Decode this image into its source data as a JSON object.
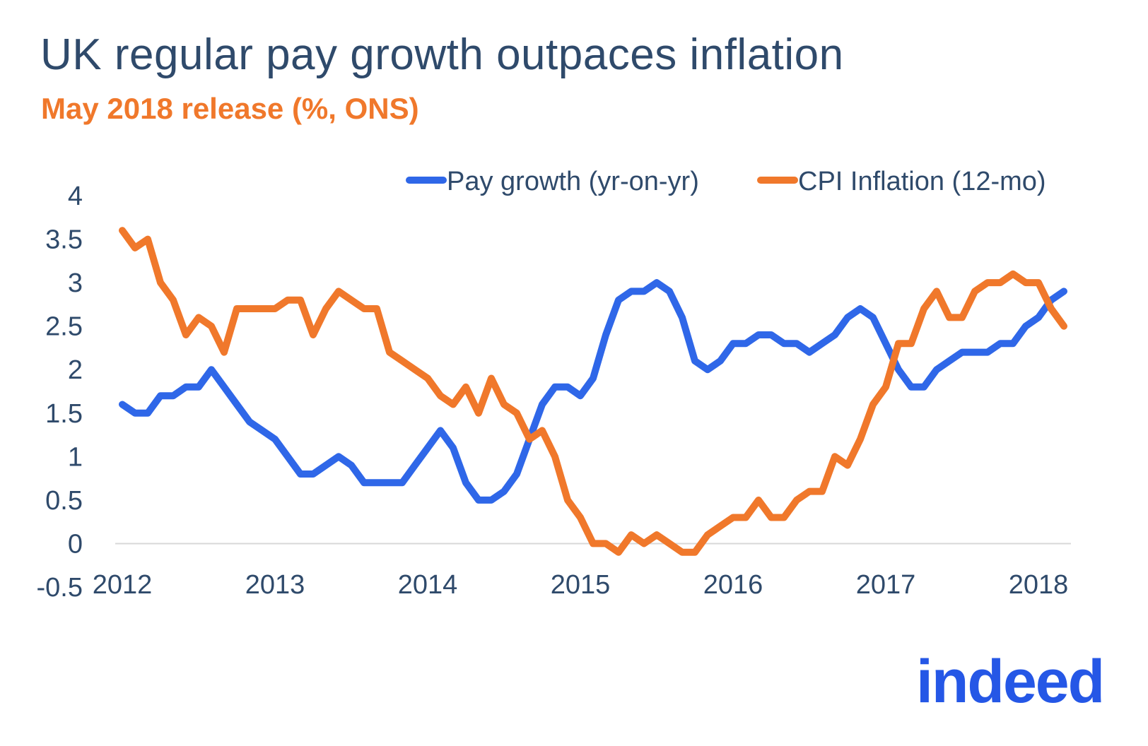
{
  "title": "UK regular pay growth outpaces inflation",
  "subtitle": "May 2018 release (%, ONS)",
  "logo_text": "indeed",
  "colors": {
    "title": "#2f4a6b",
    "subtitle": "#f0782b",
    "pay": "#2f67e8",
    "cpi": "#f0782b",
    "axis": "#d8d8d8",
    "tick_text": "#2f4a6b",
    "logo": "#2557e6"
  },
  "chart_data": {
    "type": "line",
    "title": "UK regular pay growth outpaces inflation",
    "subtitle": "May 2018 release (%, ONS)",
    "xlabel": "",
    "ylabel": "",
    "x_start": "2012-01",
    "x_frequency": "monthly",
    "x_ticks": [
      "2012",
      "2013",
      "2014",
      "2015",
      "2016",
      "2017",
      "2018"
    ],
    "y_ticks": [
      "4",
      "3.5",
      "3",
      "2.5",
      "2",
      "1.5",
      "1",
      "0.5",
      "0",
      "-0.5"
    ],
    "ylim": [
      -0.5,
      4
    ],
    "grid": false,
    "legend_position": "top-right",
    "series": [
      {
        "name": "Pay growth (yr-on-yr)",
        "color": "#2f67e8",
        "values": [
          1.6,
          1.5,
          1.5,
          1.7,
          1.7,
          1.8,
          1.8,
          2.0,
          1.8,
          1.6,
          1.4,
          1.3,
          1.2,
          1.0,
          0.8,
          0.8,
          0.9,
          1.0,
          0.9,
          0.7,
          0.7,
          0.7,
          0.7,
          0.9,
          1.1,
          1.3,
          1.1,
          0.7,
          0.5,
          0.5,
          0.6,
          0.8,
          1.2,
          1.6,
          1.8,
          1.8,
          1.7,
          1.9,
          2.4,
          2.8,
          2.9,
          2.9,
          3.0,
          2.9,
          2.6,
          2.1,
          2.0,
          2.1,
          2.3,
          2.3,
          2.4,
          2.4,
          2.3,
          2.3,
          2.2,
          2.3,
          2.4,
          2.6,
          2.7,
          2.6,
          2.3,
          2.0,
          1.8,
          1.8,
          2.0,
          2.1,
          2.2,
          2.2,
          2.2,
          2.3,
          2.3,
          2.5,
          2.6,
          2.8,
          2.9
        ]
      },
      {
        "name": "CPI Inflation (12-mo)",
        "color": "#f0782b",
        "values": [
          3.6,
          3.4,
          3.5,
          3.0,
          2.8,
          2.4,
          2.6,
          2.5,
          2.2,
          2.7,
          2.7,
          2.7,
          2.7,
          2.8,
          2.8,
          2.4,
          2.7,
          2.9,
          2.8,
          2.7,
          2.7,
          2.2,
          2.1,
          2.0,
          1.9,
          1.7,
          1.6,
          1.8,
          1.5,
          1.9,
          1.6,
          1.5,
          1.2,
          1.3,
          1.0,
          0.5,
          0.3,
          0.0,
          0.0,
          -0.1,
          0.1,
          0.0,
          0.1,
          0.0,
          -0.1,
          -0.1,
          0.1,
          0.2,
          0.3,
          0.3,
          0.5,
          0.3,
          0.3,
          0.5,
          0.6,
          0.6,
          1.0,
          0.9,
          1.2,
          1.6,
          1.8,
          2.3,
          2.3,
          2.7,
          2.9,
          2.6,
          2.6,
          2.9,
          3.0,
          3.0,
          3.1,
          3.0,
          3.0,
          2.7,
          2.5
        ]
      }
    ]
  }
}
